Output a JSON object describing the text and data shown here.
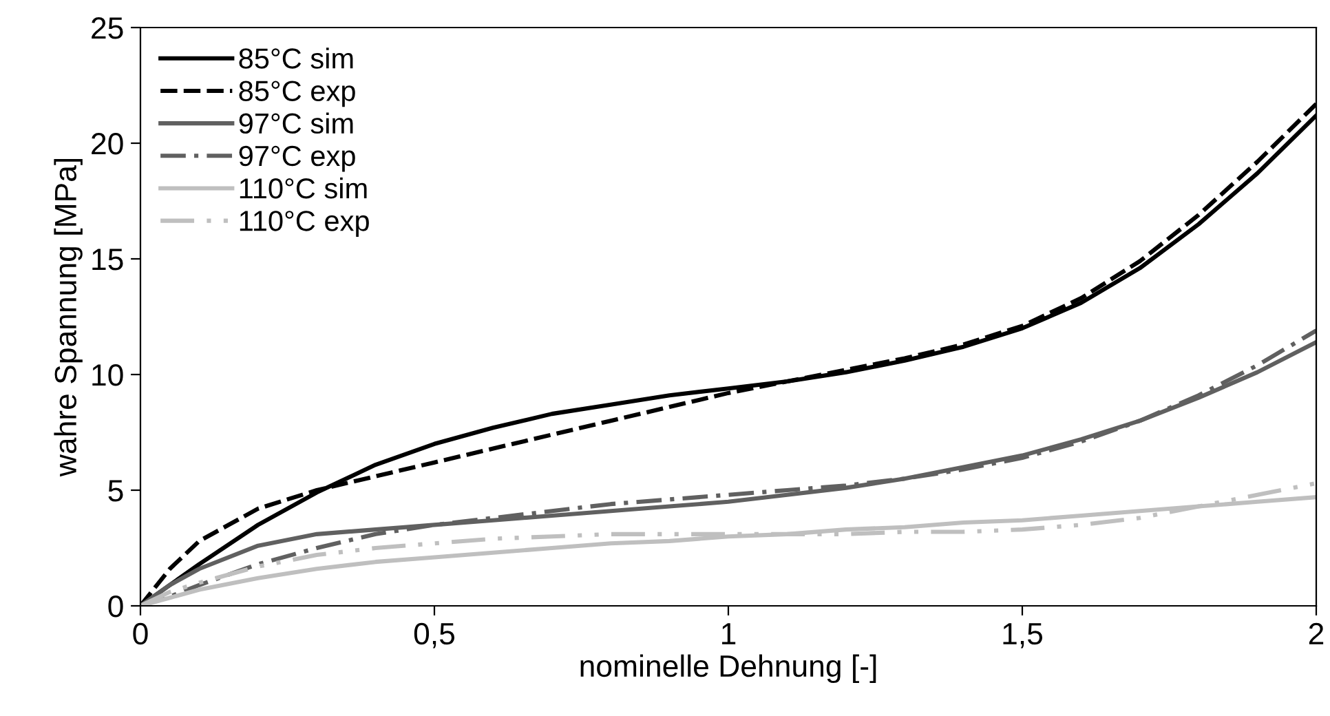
{
  "chart_data": {
    "type": "line",
    "xlabel": "nominelle Dehnung [-]",
    "ylabel": "wahre Spannung [MPa]",
    "x": [
      0,
      0.05,
      0.1,
      0.2,
      0.3,
      0.4,
      0.5,
      0.6,
      0.7,
      0.8,
      0.9,
      1.0,
      1.1,
      1.2,
      1.3,
      1.4,
      1.5,
      1.6,
      1.7,
      1.8,
      1.9,
      2.0
    ],
    "series": [
      {
        "name": "85°C sim",
        "color": "#000000",
        "line_style": "solid",
        "values": [
          0,
          0.9,
          1.8,
          3.5,
          4.9,
          6.1,
          7.0,
          7.7,
          8.3,
          8.7,
          9.1,
          9.4,
          9.7,
          10.1,
          10.6,
          11.2,
          12.0,
          13.1,
          14.6,
          16.5,
          18.7,
          21.2
        ]
      },
      {
        "name": "85°C exp",
        "color": "#000000",
        "line_style": "dashed",
        "values": [
          0,
          1.6,
          2.8,
          4.2,
          5.0,
          5.6,
          6.2,
          6.8,
          7.4,
          8.0,
          8.6,
          9.2,
          9.7,
          10.2,
          10.7,
          11.3,
          12.1,
          13.3,
          14.9,
          16.9,
          19.2,
          21.7
        ]
      },
      {
        "name": "97°C sim",
        "color": "#606060",
        "line_style": "solid",
        "values": [
          0,
          0.9,
          1.6,
          2.6,
          3.1,
          3.3,
          3.5,
          3.7,
          3.9,
          4.1,
          4.3,
          4.5,
          4.8,
          5.1,
          5.5,
          6.0,
          6.5,
          7.2,
          8.0,
          9.0,
          10.1,
          11.4
        ]
      },
      {
        "name": "97°C exp",
        "color": "#606060",
        "line_style": "dashdot",
        "values": [
          0,
          0.4,
          0.9,
          1.8,
          2.5,
          3.1,
          3.5,
          3.8,
          4.1,
          4.4,
          4.6,
          4.8,
          5.0,
          5.2,
          5.5,
          5.9,
          6.4,
          7.1,
          8.0,
          9.1,
          10.4,
          11.9
        ]
      },
      {
        "name": "110°C sim",
        "color": "#bfbfbf",
        "line_style": "solid",
        "values": [
          0,
          0.35,
          0.7,
          1.2,
          1.6,
          1.9,
          2.1,
          2.3,
          2.5,
          2.7,
          2.8,
          3.0,
          3.1,
          3.3,
          3.4,
          3.6,
          3.7,
          3.9,
          4.1,
          4.3,
          4.5,
          4.7
        ]
      },
      {
        "name": "110°C exp",
        "color": "#bfbfbf",
        "line_style": "dashdotdot",
        "values": [
          0,
          0.6,
          1.0,
          1.7,
          2.2,
          2.5,
          2.7,
          2.9,
          3.0,
          3.1,
          3.1,
          3.1,
          3.1,
          3.1,
          3.2,
          3.2,
          3.3,
          3.5,
          3.8,
          4.3,
          4.8,
          5.3
        ]
      }
    ],
    "xlim": [
      0,
      2
    ],
    "xticks": [
      0,
      {
        "value": 0.5,
        "label": "0,5"
      },
      1,
      {
        "value": 1.5,
        "label": "1,5"
      },
      2
    ],
    "ylim": [
      0,
      25
    ],
    "yticks": [
      0,
      5,
      10,
      15,
      20,
      25
    ],
    "grid": false,
    "legend": "top left",
    "marker": "none"
  }
}
